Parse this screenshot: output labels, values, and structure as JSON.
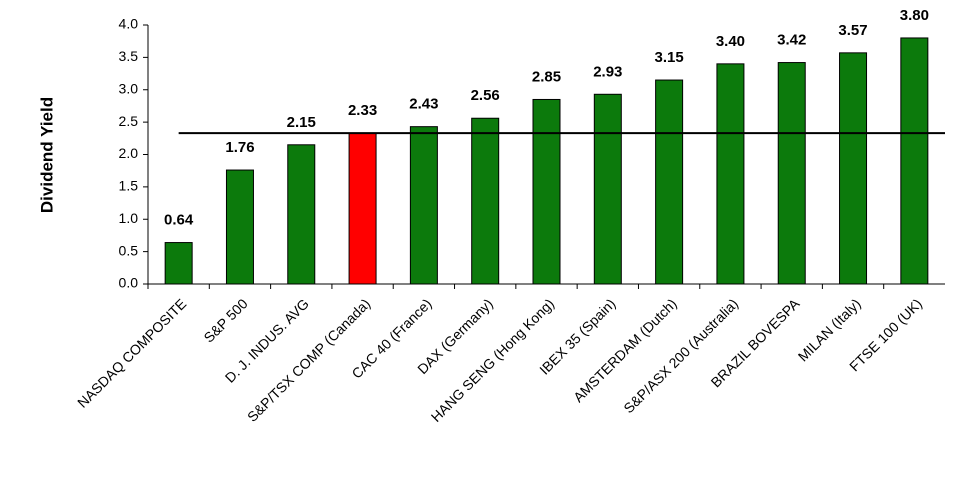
{
  "chart_data": {
    "type": "bar",
    "y_label": "Dividend Yield",
    "categories": [
      "NASDAQ COMPOSITE",
      "S&P 500",
      "D. J. INDUS. AVG",
      "S&P/TSX COMP (Canada)",
      "CAC 40 (France)",
      "DAX (Germany)",
      "HANG SENG (Hong Kong)",
      "IBEX 35 (Spain)",
      "AMSTERDAM (Dutch)",
      "S&P/ASX 200 (Australia)",
      "BRAZIL BOVESPA",
      "MILAN (Italy)",
      "FTSE 100 (UK)"
    ],
    "values": [
      0.64,
      1.76,
      2.15,
      2.33,
      2.43,
      2.56,
      2.85,
      2.93,
      3.15,
      3.4,
      3.42,
      3.57,
      3.8
    ],
    "value_labels": [
      "0.64",
      "1.76",
      "2.15",
      "2.33",
      "2.43",
      "2.56",
      "2.85",
      "2.93",
      "3.15",
      "3.40",
      "3.42",
      "3.57",
      "3.80"
    ],
    "colors": [
      "#0c7a0c",
      "#0c7a0c",
      "#0c7a0c",
      "#ff0000",
      "#0c7a0c",
      "#0c7a0c",
      "#0c7a0c",
      "#0c7a0c",
      "#0c7a0c",
      "#0c7a0c",
      "#0c7a0c",
      "#0c7a0c",
      "#0c7a0c"
    ],
    "reference_line": 2.33,
    "ylim": [
      0,
      4
    ],
    "yticks": [
      {
        "value": 0,
        "label": "0.0"
      },
      {
        "value": 0.5,
        "label": "0.5"
      },
      {
        "value": 1,
        "label": "1.0"
      },
      {
        "value": 1.5,
        "label": "1.5"
      },
      {
        "value": 2,
        "label": "2.0"
      },
      {
        "value": 2.5,
        "label": "2.5"
      },
      {
        "value": 3,
        "label": "3.0"
      },
      {
        "value": 3.5,
        "label": "3.5"
      },
      {
        "value": 4,
        "label": "4.0"
      }
    ],
    "grid": false
  }
}
